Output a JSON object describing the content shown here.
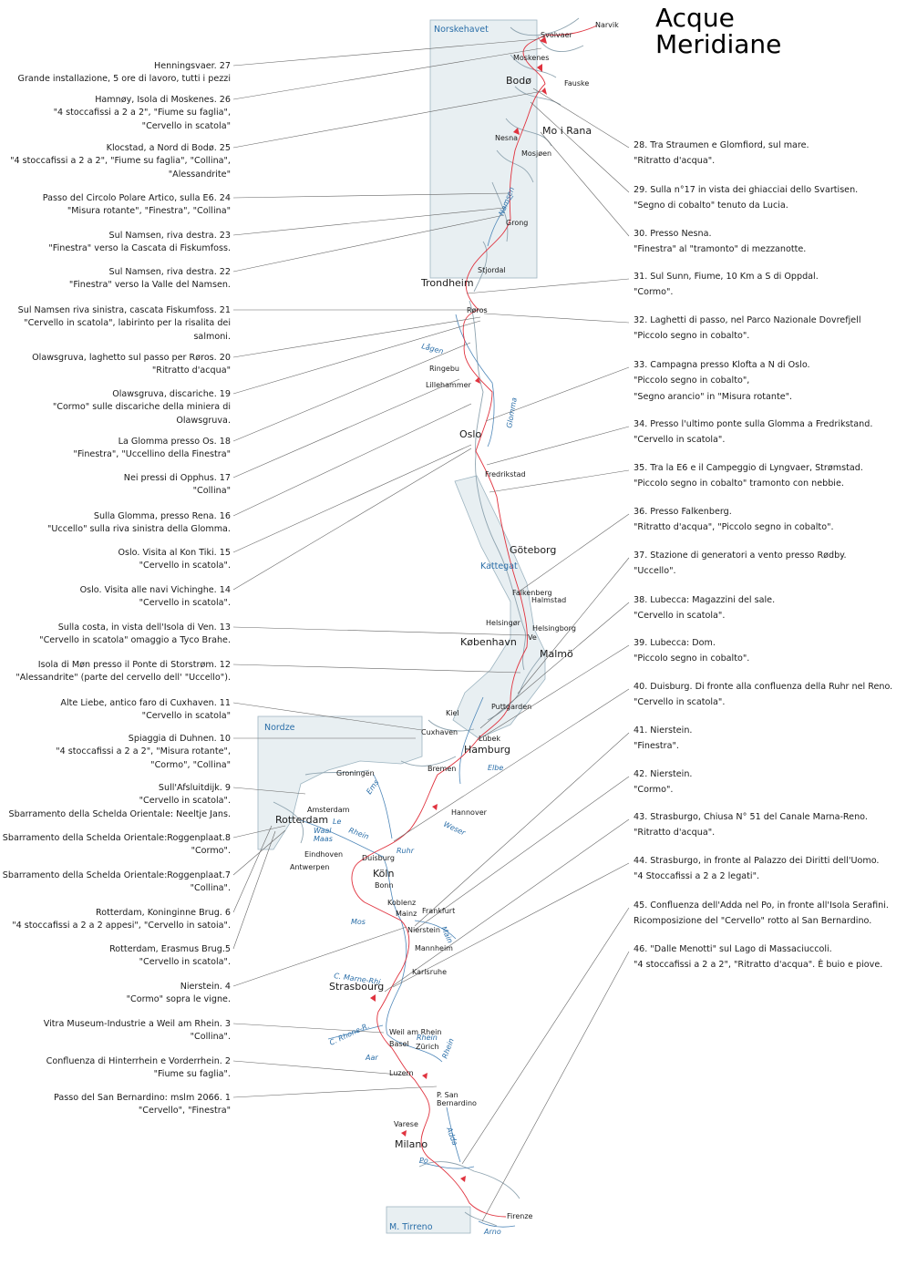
{
  "title_line1": "Acque",
  "title_line2": "Meridiane",
  "seas": [
    "Norskehavet",
    "Kattegat",
    "Nordze",
    "M. Tirreno"
  ],
  "cities": {
    "narvik": "Narvik",
    "svolvaer": "Svolvaer",
    "moskenes": "Moskenes",
    "bodo": "Bodø",
    "fauske": "Fauske",
    "nesna": "Nesna",
    "mo_i_rana": "Mo i Rana",
    "mosjoen": "Mosjøen",
    "grong": "Grong",
    "stjordal": "Stjordal",
    "trondheim": "Trondheim",
    "roros": "Røros",
    "ringebu": "Ringebu",
    "lillehammer": "Lillehammer",
    "oslo": "Oslo",
    "fredrikstad": "Fredrikstad",
    "goteborg": "Göteborg",
    "falkenberg": "Falkenberg",
    "halmstad": "Halmstad",
    "helsingor": "Helsingør",
    "helsingborg": "Helsingborg",
    "ve": "Ve",
    "kobenhavn": "København",
    "malmo": "Malmö",
    "puttgarden": "Puttgarden",
    "kiel": "Kiel",
    "cuxhaven": "Cuxhaven",
    "lubek": "Lübek",
    "hamburg": "Hamburg",
    "groningen": "Groningen",
    "bremen": "Bremen",
    "amsterdam": "Amsterdam",
    "rotterdam": "Rotterdam",
    "hannover": "Hannover",
    "eindhoven": "Eindhoven",
    "antwerpen": "Antwerpen",
    "duisburg": "Duisburg",
    "koln": "Köln",
    "bonn": "Bonn",
    "koblenz": "Koblenz",
    "frankfurt": "Frankfurt",
    "mainz": "Mainz",
    "nierstein": "Nierstein",
    "mannheim": "Mannheim",
    "karlsruhe": "Karlsruhe",
    "strasbourg": "Strasbourg",
    "weil": "Weil am Rhein",
    "basel": "Basel",
    "zurich": "Zürich",
    "luzern": "Luzern",
    "psb1": "P. San",
    "psb2": "Bernardino",
    "varese": "Varese",
    "milano": "Milano",
    "firenze": "Firenze"
  },
  "rivers": {
    "namsen": "Namsen",
    "lagen": "Lågen",
    "glomma": "Glomma",
    "elbe": "Elbe",
    "ems": "Ems",
    "le": "Le",
    "rhein1": "Rhein",
    "waal": "Waal",
    "maas": "Maas",
    "weser": "Weser",
    "ruhr": "Ruhr",
    "mos": "Mos",
    "main": "Main",
    "marne": "C. Marne-Rhi",
    "rhone": "C. Rhone-R.",
    "rhein2": "Rhein",
    "aar": "Aar",
    "rhein3": "Rhein",
    "adda": "Adda",
    "po": "Po",
    "arno": "Arno"
  },
  "left_captions": [
    {
      "lines": [
        "Henningsvaer. 27",
        "Grande installazione, 5 ore di lavoro, tutti i pezzi"
      ]
    },
    {
      "lines": [
        "Hamnøy, Isola di Moskenes. 26",
        "\"4 stoccafissi a 2 a 2\", \"Fiume su faglia\",",
        "\"Cervello in scatola\""
      ]
    },
    {
      "lines": [
        "Klocstad, a Nord di Bodø. 25",
        "\"4 stoccafissi a 2 a 2\", \"Fiume su faglia\", \"Collina\",",
        "\"Alessandrite\""
      ]
    },
    {
      "lines": [
        "Passo del Circolo Polare Artico, sulla E6. 24",
        "\"Misura rotante\", \"Finestra\", \"Collina\""
      ]
    },
    {
      "lines": [
        "Sul Namsen, riva destra. 23",
        "\"Finestra\" verso la Cascata di Fiskumfoss."
      ]
    },
    {
      "lines": [
        "Sul Namsen, riva destra. 22",
        "\"Finestra\" verso la Valle del Namsen."
      ]
    },
    {
      "lines": [
        "Sul Namsen riva sinistra, cascata Fiskumfoss. 21",
        "\"Cervello in scatola\", labirinto per la risalita dei",
        "salmoni."
      ]
    },
    {
      "lines": [
        "Olawsgruva, laghetto sul passo per Røros. 20",
        "\"Ritratto d'acqua\""
      ]
    },
    {
      "lines": [
        "Olawsgruva, discariche. 19",
        "\"Cormo\" sulle discariche della miniera di",
        "Olawsgruva."
      ]
    },
    {
      "lines": [
        "La Glomma presso Os. 18",
        "\"Finestra\", \"Uccellino della Finestra\""
      ]
    },
    {
      "lines": [
        "Nei pressi di Opphus. 17",
        "\"Collina\""
      ]
    },
    {
      "lines": [
        "Sulla Glomma, presso Rena. 16",
        "\"Uccello\" sulla riva sinistra della Glomma."
      ]
    },
    {
      "lines": [
        "Oslo. Visita al Kon Tiki. 15",
        "\"Cervello in scatola\"."
      ]
    },
    {
      "lines": [
        "Oslo. Visita alle navi Vichinghe. 14",
        "\"Cervello in scatola\"."
      ]
    },
    {
      "lines": [
        "Sulla costa, in vista dell'Isola di Ven. 13",
        "\"Cervello in scatola\" omaggio a Tyco Brahe."
      ]
    },
    {
      "lines": [
        "Isola di Møn presso il Ponte di Storstrøm. 12",
        "\"Alessandrite\" (parte del cervello dell' \"Uccello\")."
      ]
    },
    {
      "lines": [
        "Alte Liebe, antico faro di Cuxhaven. 11",
        "\"Cervello in scatola\""
      ]
    },
    {
      "lines": [
        "Spiaggia di Duhnen. 10",
        "\"4 stoccafissi a 2 a 2\", \"Misura rotante\",",
        "\"Cormo\", \"Collina\""
      ]
    },
    {
      "lines": [
        "Sull'Afsluitdijk. 9",
        "\"Cervello in scatola\".",
        "Sbarramento della Schelda Orientale: Neeltje Jans."
      ]
    },
    {
      "lines": [
        "Sbarramento della Schelda Orientale:Roggenplaat.8",
        "\"Cormo\"."
      ]
    },
    {
      "lines": [
        "Sbarramento della Schelda Orientale:Roggenplaat.7",
        "\"Collina\"."
      ]
    },
    {
      "lines": [
        "Rotterdam, Koninginne Brug. 6",
        "\"4 stoccafissi a 2 a 2 appesi\", \"Cervello in satoia\"."
      ]
    },
    {
      "lines": [
        "Rotterdam, Erasmus Brug.5",
        "\"Cervello in scatola\"."
      ]
    },
    {
      "lines": [
        "Nierstein. 4",
        "\"Cormo\" sopra le vigne."
      ]
    },
    {
      "lines": [
        "Vitra Museum-Industrie a Weil am Rhein. 3",
        "\"Collina\"."
      ]
    },
    {
      "lines": [
        "Confluenza di Hinterrhein e Vorderrhein. 2",
        "\"Fiume su faglia\"."
      ]
    },
    {
      "lines": [
        "Passo del San Bernardino: mslm 2066. 1",
        "\"Cervello\", \"Finestra\""
      ]
    }
  ],
  "right_captions": [
    {
      "lines": [
        "28. Tra Straumen e Glomfiord, sul mare.",
        "\"Ritratto d'acqua\"."
      ]
    },
    {
      "lines": [
        "29. Sulla n°17 in vista dei ghiacciai dello Svartisen.",
        "\"Segno di cobalto\" tenuto da Lucia."
      ]
    },
    {
      "lines": [
        "30. Presso Nesna.",
        "\"Finestra\" al \"tramonto\" di mezzanotte."
      ]
    },
    {
      "lines": [
        "31. Sul Sunn, Fiume, 10 Km a S di Oppdal.",
        "\"Cormo\"."
      ]
    },
    {
      "lines": [
        "32. Laghetti di passo, nel Parco Nazionale Dovrefjell",
        "\"Piccolo segno in cobalto\"."
      ]
    },
    {
      "lines": [
        "33. Campagna presso Klofta a N di Oslo.",
        "\"Piccolo segno in cobalto\",",
        "\"Segno arancio\" in \"Misura rotante\"."
      ]
    },
    {
      "lines": [
        "34. Presso l'ultimo ponte sulla Glomma a Fredrikstand.",
        "\"Cervello in scatola\"."
      ]
    },
    {
      "lines": [
        "35. Tra la E6 e il Campeggio di Lyngvaer, Strømstad.",
        "\"Piccolo segno in cobalto\" tramonto con nebbie."
      ]
    },
    {
      "lines": [
        "36. Presso Falkenberg.",
        "\"Ritratto d'acqua\", \"Piccolo segno in cobalto\"."
      ]
    },
    {
      "lines": [
        "37. Stazione di generatori a vento presso Rødby.",
        "\"Uccello\"."
      ]
    },
    {
      "lines": [
        "38. Lubecca: Magazzini del sale.",
        "\"Cervello in scatola\"."
      ]
    },
    {
      "lines": [
        "39. Lubecca: Dom.",
        "\"Piccolo segno in cobalto\"."
      ]
    },
    {
      "lines": [
        "40. Duisburg. Di fronte alla confluenza della Ruhr nel Reno.",
        "\"Cervello in scatola\"."
      ]
    },
    {
      "lines": [
        "41. Nierstein.",
        "\"Finestra\"."
      ]
    },
    {
      "lines": [
        "42. Nierstein.",
        "\"Cormo\"."
      ]
    },
    {
      "lines": [
        "43. Strasburgo, Chiusa N° 51 del Canale Marna-Reno.",
        "\"Ritratto d'acqua\"."
      ]
    },
    {
      "lines": [
        "44. Strasburgo, in fronte al Palazzo dei Diritti dell'Uomo.",
        "\"4 Stoccafissi a 2 a 2 legati\"."
      ]
    },
    {
      "lines": [
        "45. Confluenza dell'Adda nel Po, in fronte all'Isola Serafini.",
        "Ricomposizione del \"Cervello\" rotto al San Bernardino."
      ]
    },
    {
      "lines": [
        "46. \"Dalle Menotti\" sul Lago di Massaciuccoli.",
        "\"4 stoccafissi a 2 a 2\", \"Ritratto d'acqua\". È buio e piove."
      ]
    }
  ],
  "colors": {
    "route": "#e0333f",
    "water": "#2a6ea8",
    "sea_fill": "#e8eff2",
    "sea_stroke": "#9db4c0",
    "leader": "#666666"
  }
}
